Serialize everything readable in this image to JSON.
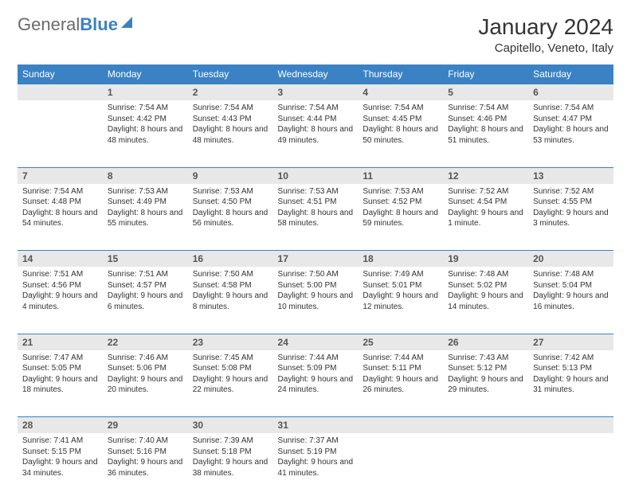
{
  "logo": {
    "part1": "General",
    "part2": "Blue"
  },
  "title": "January 2024",
  "location": "Capitello, Veneto, Italy",
  "colors": {
    "header_bg": "#3b82c4",
    "daynum_bg": "#e8e8e8",
    "border": "#3b82c4",
    "text": "#333333",
    "logo_gray": "#6b6b6b"
  },
  "day_headers": [
    "Sunday",
    "Monday",
    "Tuesday",
    "Wednesday",
    "Thursday",
    "Friday",
    "Saturday"
  ],
  "weeks": [
    [
      null,
      {
        "n": "1",
        "sunrise": "7:54 AM",
        "sunset": "4:42 PM",
        "daylight": "8 hours and 48 minutes."
      },
      {
        "n": "2",
        "sunrise": "7:54 AM",
        "sunset": "4:43 PM",
        "daylight": "8 hours and 48 minutes."
      },
      {
        "n": "3",
        "sunrise": "7:54 AM",
        "sunset": "4:44 PM",
        "daylight": "8 hours and 49 minutes."
      },
      {
        "n": "4",
        "sunrise": "7:54 AM",
        "sunset": "4:45 PM",
        "daylight": "8 hours and 50 minutes."
      },
      {
        "n": "5",
        "sunrise": "7:54 AM",
        "sunset": "4:46 PM",
        "daylight": "8 hours and 51 minutes."
      },
      {
        "n": "6",
        "sunrise": "7:54 AM",
        "sunset": "4:47 PM",
        "daylight": "8 hours and 53 minutes."
      }
    ],
    [
      {
        "n": "7",
        "sunrise": "7:54 AM",
        "sunset": "4:48 PM",
        "daylight": "8 hours and 54 minutes."
      },
      {
        "n": "8",
        "sunrise": "7:53 AM",
        "sunset": "4:49 PM",
        "daylight": "8 hours and 55 minutes."
      },
      {
        "n": "9",
        "sunrise": "7:53 AM",
        "sunset": "4:50 PM",
        "daylight": "8 hours and 56 minutes."
      },
      {
        "n": "10",
        "sunrise": "7:53 AM",
        "sunset": "4:51 PM",
        "daylight": "8 hours and 58 minutes."
      },
      {
        "n": "11",
        "sunrise": "7:53 AM",
        "sunset": "4:52 PM",
        "daylight": "8 hours and 59 minutes."
      },
      {
        "n": "12",
        "sunrise": "7:52 AM",
        "sunset": "4:54 PM",
        "daylight": "9 hours and 1 minute."
      },
      {
        "n": "13",
        "sunrise": "7:52 AM",
        "sunset": "4:55 PM",
        "daylight": "9 hours and 3 minutes."
      }
    ],
    [
      {
        "n": "14",
        "sunrise": "7:51 AM",
        "sunset": "4:56 PM",
        "daylight": "9 hours and 4 minutes."
      },
      {
        "n": "15",
        "sunrise": "7:51 AM",
        "sunset": "4:57 PM",
        "daylight": "9 hours and 6 minutes."
      },
      {
        "n": "16",
        "sunrise": "7:50 AM",
        "sunset": "4:58 PM",
        "daylight": "9 hours and 8 minutes."
      },
      {
        "n": "17",
        "sunrise": "7:50 AM",
        "sunset": "5:00 PM",
        "daylight": "9 hours and 10 minutes."
      },
      {
        "n": "18",
        "sunrise": "7:49 AM",
        "sunset": "5:01 PM",
        "daylight": "9 hours and 12 minutes."
      },
      {
        "n": "19",
        "sunrise": "7:48 AM",
        "sunset": "5:02 PM",
        "daylight": "9 hours and 14 minutes."
      },
      {
        "n": "20",
        "sunrise": "7:48 AM",
        "sunset": "5:04 PM",
        "daylight": "9 hours and 16 minutes."
      }
    ],
    [
      {
        "n": "21",
        "sunrise": "7:47 AM",
        "sunset": "5:05 PM",
        "daylight": "9 hours and 18 minutes."
      },
      {
        "n": "22",
        "sunrise": "7:46 AM",
        "sunset": "5:06 PM",
        "daylight": "9 hours and 20 minutes."
      },
      {
        "n": "23",
        "sunrise": "7:45 AM",
        "sunset": "5:08 PM",
        "daylight": "9 hours and 22 minutes."
      },
      {
        "n": "24",
        "sunrise": "7:44 AM",
        "sunset": "5:09 PM",
        "daylight": "9 hours and 24 minutes."
      },
      {
        "n": "25",
        "sunrise": "7:44 AM",
        "sunset": "5:11 PM",
        "daylight": "9 hours and 26 minutes."
      },
      {
        "n": "26",
        "sunrise": "7:43 AM",
        "sunset": "5:12 PM",
        "daylight": "9 hours and 29 minutes."
      },
      {
        "n": "27",
        "sunrise": "7:42 AM",
        "sunset": "5:13 PM",
        "daylight": "9 hours and 31 minutes."
      }
    ],
    [
      {
        "n": "28",
        "sunrise": "7:41 AM",
        "sunset": "5:15 PM",
        "daylight": "9 hours and 34 minutes."
      },
      {
        "n": "29",
        "sunrise": "7:40 AM",
        "sunset": "5:16 PM",
        "daylight": "9 hours and 36 minutes."
      },
      {
        "n": "30",
        "sunrise": "7:39 AM",
        "sunset": "5:18 PM",
        "daylight": "9 hours and 38 minutes."
      },
      {
        "n": "31",
        "sunrise": "7:37 AM",
        "sunset": "5:19 PM",
        "daylight": "9 hours and 41 minutes."
      },
      null,
      null,
      null
    ]
  ]
}
